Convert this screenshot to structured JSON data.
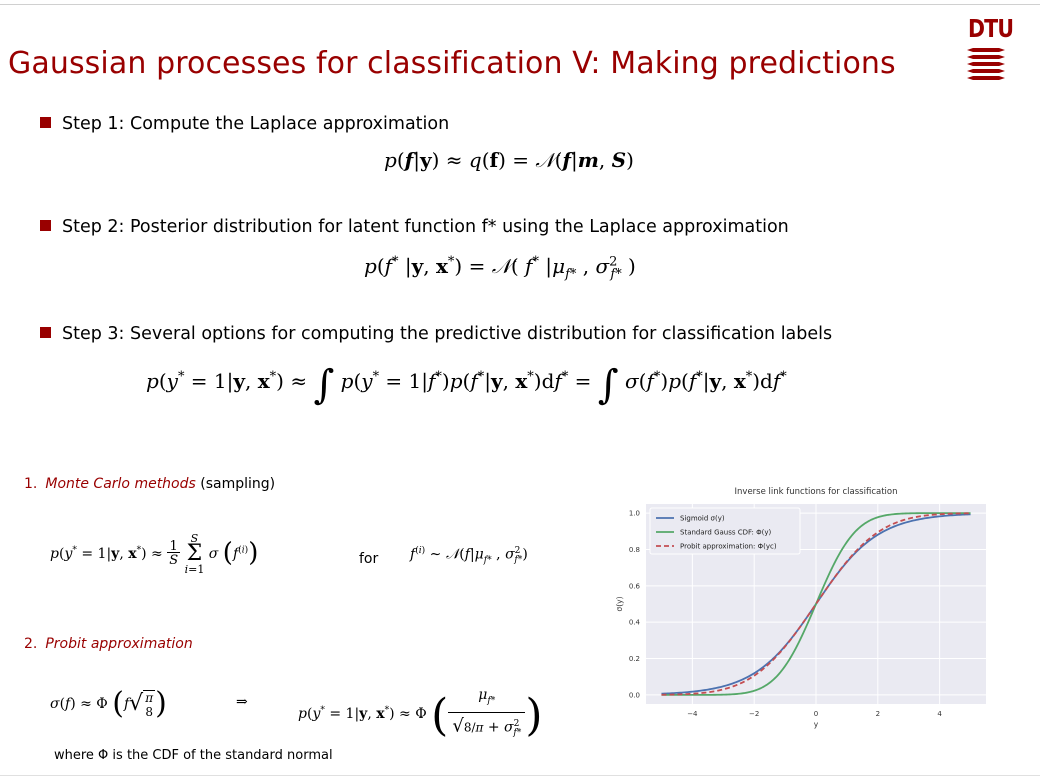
{
  "slide": {
    "title": "Gaussian processes for classification V: Making predictions",
    "logo_text": "DTU"
  },
  "steps": [
    {
      "label": "Step 1: Compute the Laplace approximation"
    },
    {
      "label": "Step 2: Posterior distribution for latent function f* using the Laplace approximation"
    },
    {
      "label": "Step 3: Several options for computing the predictive distribution for classification labels"
    }
  ],
  "methods": [
    {
      "number": "1.",
      "name": "Monte Carlo methods",
      "suffix": "(sampling)",
      "for_word": "for"
    },
    {
      "number": "2.",
      "name": "Probit approximation",
      "implies": "⇒"
    }
  ],
  "note": "where Φ is the CDF of the standard normal",
  "chart_data": {
    "type": "line",
    "title": "Inverse link functions for classification",
    "xlabel": "y",
    "ylabel": "σ(y)",
    "xlim": [
      -5.5,
      5.5
    ],
    "ylim": [
      -0.05,
      1.05
    ],
    "xticks": [
      -4,
      -2,
      0,
      2,
      4
    ],
    "yticks": [
      0.0,
      0.2,
      0.4,
      0.6,
      0.8,
      1.0
    ],
    "grid": true,
    "legend_position": "upper-left",
    "x_range": [
      -5,
      5
    ],
    "series": [
      {
        "name": "Sigmoid σ(y)",
        "function": "sigmoid",
        "color": "#4c72b0",
        "style": "solid"
      },
      {
        "name": "Standard Gauss CDF: Φ(y)",
        "function": "gauss_cdf",
        "color": "#55a868",
        "style": "solid"
      },
      {
        "name": "Probit approximation: Φ(yc)",
        "function": "probit_scaled",
        "c": 0.625,
        "color": "#c44e52",
        "style": "dashed"
      }
    ]
  }
}
